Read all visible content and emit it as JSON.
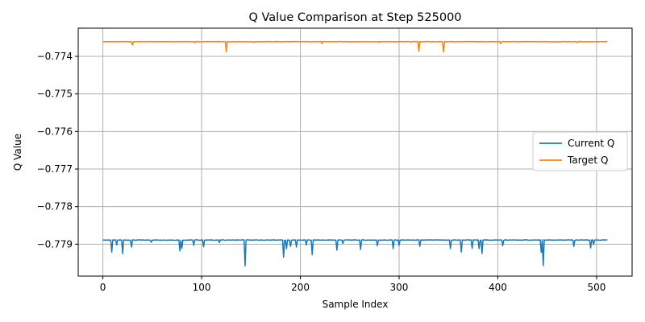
{
  "chart_data": {
    "type": "line",
    "title": "Q Value Comparison at Step 525000",
    "xlabel": "Sample Index",
    "ylabel": "Q Value",
    "xlim": [
      -25,
      536
    ],
    "ylim": [
      -0.77985,
      -0.77325
    ],
    "x_ticks": [
      {
        "value": 0,
        "label": "0"
      },
      {
        "value": 100,
        "label": "100"
      },
      {
        "value": 200,
        "label": "200"
      },
      {
        "value": 300,
        "label": "300"
      },
      {
        "value": 400,
        "label": "400"
      },
      {
        "value": 500,
        "label": "500"
      }
    ],
    "y_ticks": [
      {
        "value": -0.774,
        "label": "−0.774"
      },
      {
        "value": -0.775,
        "label": "−0.775"
      },
      {
        "value": -0.776,
        "label": "−0.776"
      },
      {
        "value": -0.777,
        "label": "−0.777"
      },
      {
        "value": -0.778,
        "label": "−0.778"
      },
      {
        "value": -0.779,
        "label": "−0.779"
      }
    ],
    "grid": true,
    "legend_position": "center-right",
    "series": [
      {
        "name": "Current Q",
        "color": "#1f77b4",
        "n_points": 512,
        "baseline": -0.77889,
        "dips": [
          {
            "x": 9,
            "y": -0.77921
          },
          {
            "x": 14,
            "y": -0.77902
          },
          {
            "x": 20,
            "y": -0.77925
          },
          {
            "x": 29,
            "y": -0.77908
          },
          {
            "x": 49,
            "y": -0.77895
          },
          {
            "x": 78,
            "y": -0.77918
          },
          {
            "x": 80,
            "y": -0.77911
          },
          {
            "x": 92,
            "y": -0.77903
          },
          {
            "x": 102,
            "y": -0.77907
          },
          {
            "x": 118,
            "y": -0.77896
          },
          {
            "x": 144,
            "y": -0.77958
          },
          {
            "x": 183,
            "y": -0.77935
          },
          {
            "x": 186,
            "y": -0.77912
          },
          {
            "x": 190,
            "y": -0.77906
          },
          {
            "x": 196,
            "y": -0.77908
          },
          {
            "x": 206,
            "y": -0.77902
          },
          {
            "x": 212,
            "y": -0.77928
          },
          {
            "x": 237,
            "y": -0.77916
          },
          {
            "x": 243,
            "y": -0.77898
          },
          {
            "x": 261,
            "y": -0.77914
          },
          {
            "x": 278,
            "y": -0.77904
          },
          {
            "x": 294,
            "y": -0.77912
          },
          {
            "x": 300,
            "y": -0.77903
          },
          {
            "x": 321,
            "y": -0.77906
          },
          {
            "x": 352,
            "y": -0.77912
          },
          {
            "x": 363,
            "y": -0.77921
          },
          {
            "x": 374,
            "y": -0.77911
          },
          {
            "x": 381,
            "y": -0.77912
          },
          {
            "x": 384,
            "y": -0.77925
          },
          {
            "x": 405,
            "y": -0.77904
          },
          {
            "x": 444,
            "y": -0.77922
          },
          {
            "x": 446,
            "y": -0.77957
          },
          {
            "x": 477,
            "y": -0.77906
          },
          {
            "x": 494,
            "y": -0.7791
          },
          {
            "x": 497,
            "y": -0.77901
          }
        ]
      },
      {
        "name": "Target Q",
        "color": "#ff7f0e",
        "n_points": 512,
        "baseline": -0.77361,
        "dips": [
          {
            "x": 30,
            "y": -0.7737
          },
          {
            "x": 93,
            "y": -0.77364
          },
          {
            "x": 125,
            "y": -0.77388
          },
          {
            "x": 153,
            "y": -0.77363
          },
          {
            "x": 222,
            "y": -0.77366
          },
          {
            "x": 280,
            "y": -0.77363
          },
          {
            "x": 320,
            "y": -0.77387
          },
          {
            "x": 345,
            "y": -0.77388
          },
          {
            "x": 403,
            "y": -0.77366
          },
          {
            "x": 480,
            "y": -0.77363
          }
        ]
      }
    ]
  }
}
